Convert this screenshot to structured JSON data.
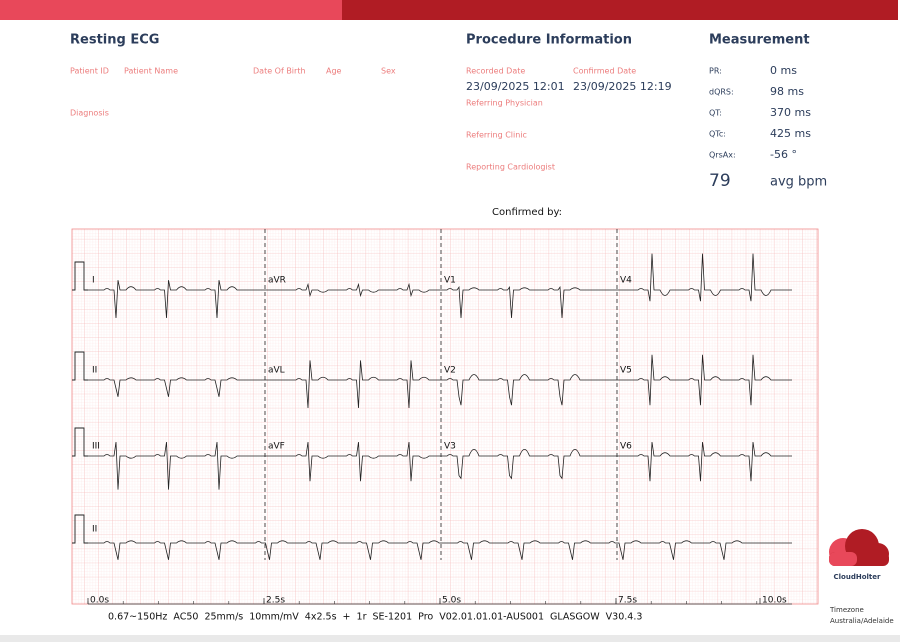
{
  "header": {
    "title": "Resting ECG",
    "patient_fields": [
      "Patient ID",
      "Patient Name",
      "Date Of Birth",
      "Age",
      "Sex"
    ],
    "diagnosis_label": "Diagnosis"
  },
  "procedure": {
    "title": "Procedure Information",
    "recorded_date_label": "Recorded Date",
    "recorded_date": "23/09/2025 12:01",
    "confirmed_date_label": "Confirmed Date",
    "confirmed_date": "23/09/2025 12:19",
    "fields": [
      "Referring Physician",
      "Referring Clinic",
      "Reporting Cardiologist"
    ]
  },
  "measurement": {
    "title": "Measurement",
    "rows": [
      {
        "label": "PR:",
        "value": "0 ms"
      },
      {
        "label": "dQRS:",
        "value": "98 ms"
      },
      {
        "label": "QT:",
        "value": "370 ms"
      },
      {
        "label": "QTc:",
        "value": "425 ms"
      },
      {
        "label": "QrsAx:",
        "value": "-56 °"
      }
    ],
    "heart_rate": 79,
    "heart_rate_unit": "avg bpm"
  },
  "confirmed_by": "Confirmed by:",
  "ecg": {
    "leads": [
      [
        "I",
        "aVR",
        "V1",
        "V4"
      ],
      [
        "II",
        "aVL",
        "V2",
        "V5"
      ],
      [
        "III",
        "aVF",
        "V3",
        "V6"
      ],
      [
        "II"
      ]
    ],
    "time_labels": [
      "0.0s",
      "2.5s",
      "5.0s",
      "7.5s",
      "10.0s"
    ],
    "settings": "0.67~150Hz AC50 25mm/s 10mm/mV 4x2.5s + 1r SE-1201 Pro V02.01.01.01-AUS001 GLASGOW V30.4.3"
  },
  "logo": {
    "name": "CloudHolter"
  },
  "timezone": {
    "label": "Timezone",
    "value": "Australia/Adelaide"
  }
}
